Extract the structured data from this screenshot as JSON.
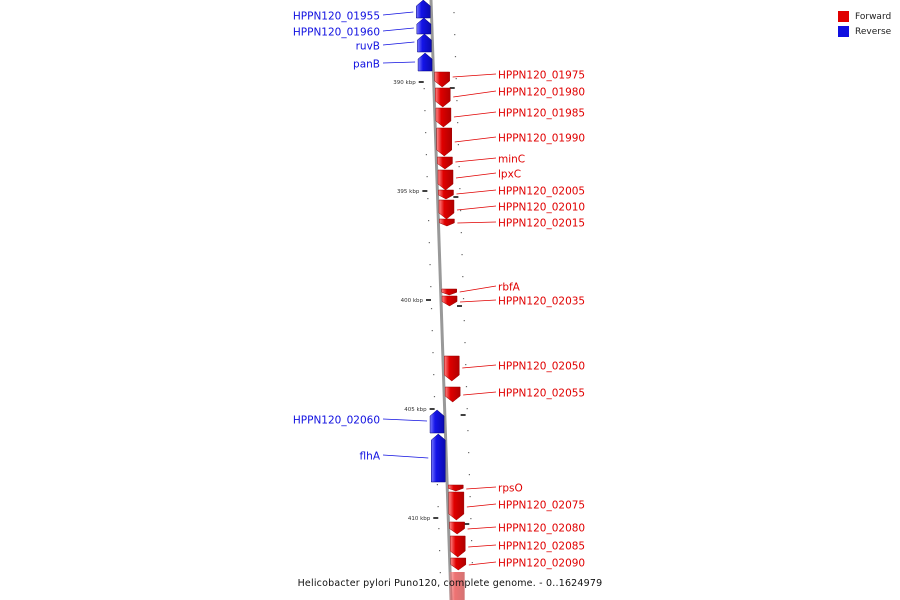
{
  "colors": {
    "forward": "#e00000",
    "reverse": "#1010e0",
    "backbone": "#999999"
  },
  "legend": [
    {
      "label": "Forward",
      "color": "#e00000"
    },
    {
      "label": "Reverse",
      "color": "#1010e0"
    }
  ],
  "caption": "Helicobacter pylori Puno120, complete genome. - 0..1624979",
  "ticks": [
    "390 kbp",
    "395 kbp",
    "400 kbp",
    "405 kbp",
    "410 kbp"
  ],
  "genes": [
    {
      "name": "HPPN120_01955",
      "strand": "reverse"
    },
    {
      "name": "HPPN120_01960",
      "strand": "reverse"
    },
    {
      "name": "ruvB",
      "strand": "reverse"
    },
    {
      "name": "panB",
      "strand": "reverse"
    },
    {
      "name": "HPPN120_01975",
      "strand": "forward"
    },
    {
      "name": "HPPN120_01980",
      "strand": "forward"
    },
    {
      "name": "HPPN120_01985",
      "strand": "forward"
    },
    {
      "name": "HPPN120_01990",
      "strand": "forward"
    },
    {
      "name": "minC",
      "strand": "forward"
    },
    {
      "name": "lpxC",
      "strand": "forward"
    },
    {
      "name": "HPPN120_02005",
      "strand": "forward"
    },
    {
      "name": "HPPN120_02010",
      "strand": "forward"
    },
    {
      "name": "HPPN120_02015",
      "strand": "forward"
    },
    {
      "name": "rbfA",
      "strand": "forward"
    },
    {
      "name": "HPPN120_02035",
      "strand": "forward"
    },
    {
      "name": "HPPN120_02050",
      "strand": "forward"
    },
    {
      "name": "HPPN120_02055",
      "strand": "forward"
    },
    {
      "name": "HPPN120_02060",
      "strand": "reverse"
    },
    {
      "name": "flhA",
      "strand": "reverse"
    },
    {
      "name": "rpsO",
      "strand": "forward"
    },
    {
      "name": "HPPN120_02075",
      "strand": "forward"
    },
    {
      "name": "HPPN120_02080",
      "strand": "forward"
    },
    {
      "name": "HPPN120_02085",
      "strand": "forward"
    },
    {
      "name": "HPPN120_02090",
      "strand": "forward"
    }
  ]
}
